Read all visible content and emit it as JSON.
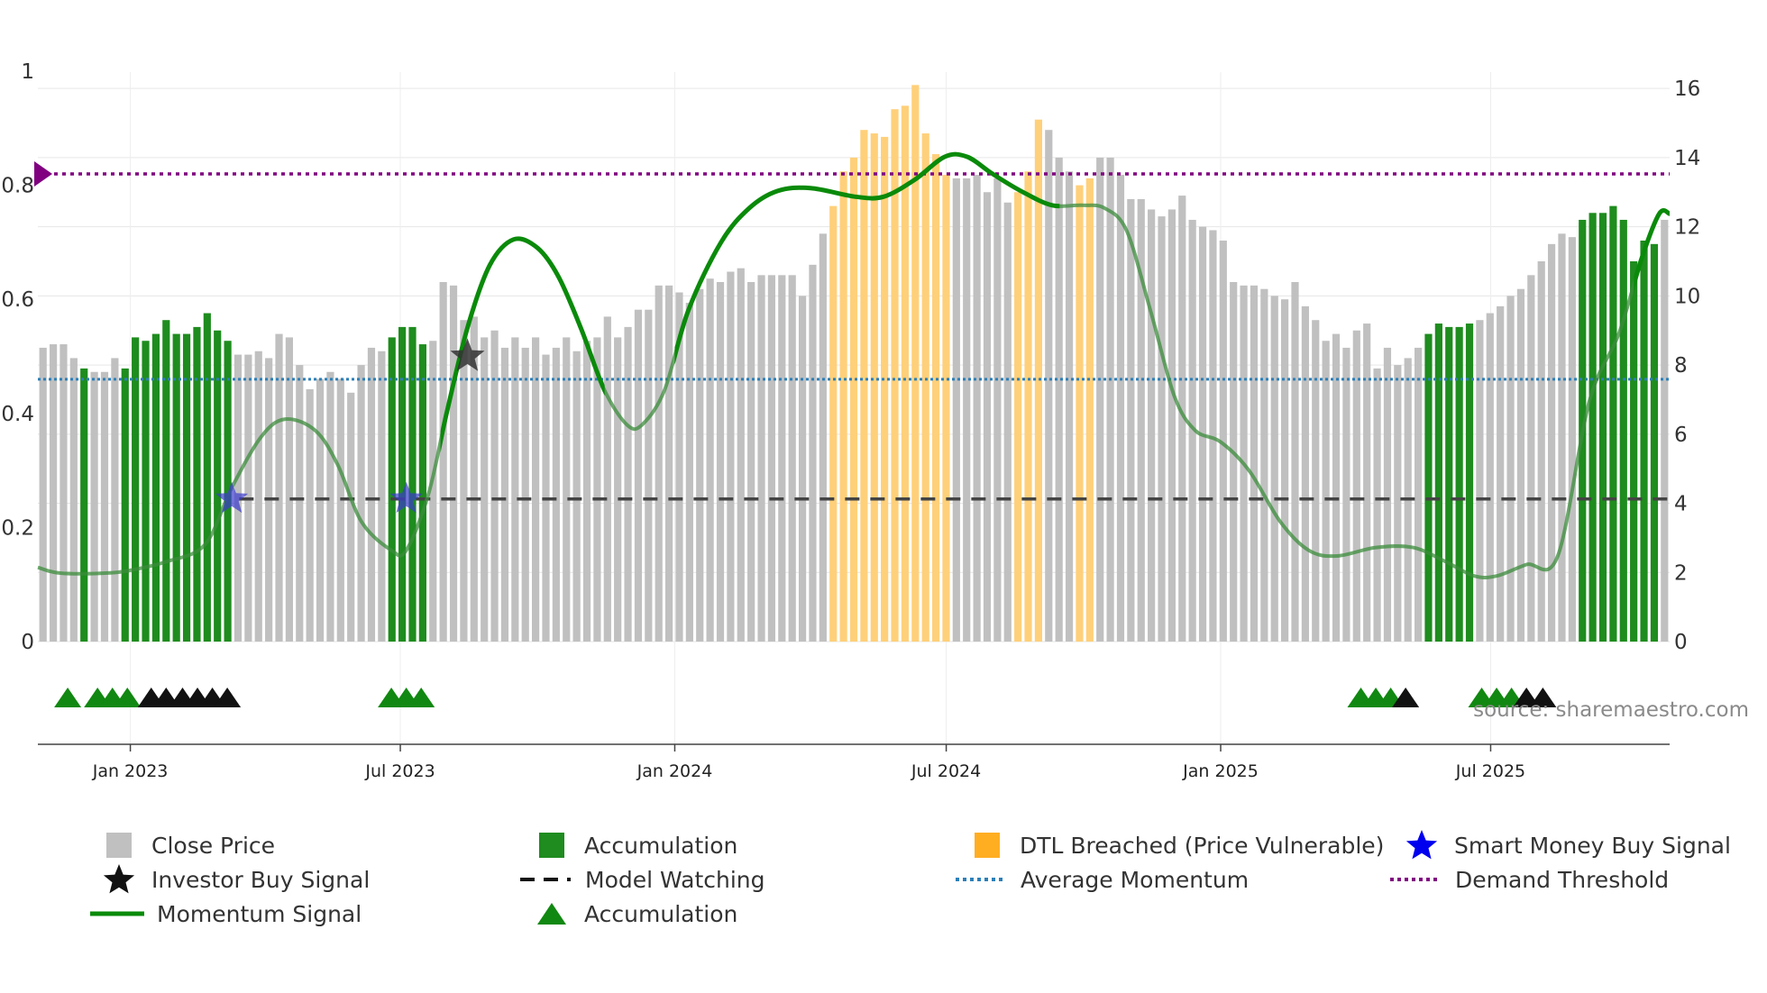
{
  "chart_data": {
    "type": "bar",
    "source": "source: sharemaestro.com",
    "y_left": {
      "ylim": [
        0,
        1
      ],
      "ticks": [
        0,
        0.2,
        0.4,
        0.6,
        0.8,
        1
      ],
      "tick_labels": [
        "0",
        "0.2",
        "0.4",
        "0.6",
        "0.8",
        "1"
      ]
    },
    "y_right": {
      "ylim": [
        0,
        16.5
      ],
      "ticks": [
        0,
        2,
        4,
        6,
        8,
        10,
        12,
        14,
        16
      ],
      "tick_labels": [
        "0",
        "2",
        "4",
        "6",
        "8",
        "10",
        "12",
        "14",
        "16"
      ]
    },
    "x": {
      "range": [
        "2022-10-31",
        "2025-10-29"
      ],
      "ticks": [
        "2023-01-01",
        "2023-07-01",
        "2024-01-01",
        "2024-07-01",
        "2025-01-01",
        "2025-07-01"
      ],
      "tick_labels": [
        "Jan 2023",
        "Jul 2023",
        "Jan 2024",
        "Jul 2024",
        "Jan 2025",
        "Jul 2025"
      ]
    },
    "series_prices": [
      8.5,
      8.6,
      8.6,
      8.2,
      7.9,
      7.8,
      7.8,
      8.2,
      7.9,
      8.8,
      8.7,
      8.9,
      9.3,
      8.9,
      8.9,
      9.1,
      9.5,
      9.0,
      8.7,
      8.3,
      8.3,
      8.4,
      8.2,
      8.9,
      8.8,
      8.0,
      7.3,
      7.6,
      7.8,
      7.6,
      7.2,
      8.0,
      8.5,
      8.4,
      8.8,
      9.1,
      9.1,
      8.6,
      8.7,
      10.4,
      10.3,
      9.3,
      9.4,
      8.8,
      9.0,
      8.5,
      8.8,
      8.5,
      8.8,
      8.3,
      8.5,
      8.8,
      8.4,
      8.7,
      8.8,
      9.4,
      8.8,
      9.1,
      9.6,
      9.6,
      10.3,
      10.3,
      10.1,
      9.8,
      10.2,
      10.5,
      10.4,
      10.7,
      10.8,
      10.4,
      10.6,
      10.6,
      10.6,
      10.6,
      10.0,
      10.9,
      11.8,
      12.6,
      13.6,
      14.0,
      14.8,
      14.7,
      14.6,
      15.4,
      15.5,
      16.1,
      14.7,
      14.1,
      13.5,
      13.4,
      13.4,
      13.5,
      13.0,
      13.4,
      12.7,
      13.0,
      13.6,
      15.1,
      14.8,
      14.0,
      13.6,
      13.2,
      13.4,
      14.0,
      14.0,
      13.5,
      12.8,
      12.8,
      12.5,
      12.3,
      12.5,
      12.9,
      12.2,
      12.0,
      11.9,
      11.6,
      10.4,
      10.3,
      10.3,
      10.2,
      10.0,
      9.9,
      10.4,
      9.7,
      9.3,
      8.7,
      8.9,
      8.5,
      9.0,
      9.2,
      7.9,
      8.5,
      8.0,
      8.2,
      8.5,
      8.9,
      9.2,
      9.1,
      9.1,
      9.2,
      9.3,
      9.5,
      9.7,
      10.0,
      10.2,
      10.6,
      11.0,
      11.5,
      11.8,
      11.7,
      12.2,
      12.4,
      12.4,
      12.6,
      12.2,
      11.0,
      11.6,
      11.5,
      12.2
    ],
    "accumulation_bar_indices": [
      4,
      8,
      9,
      10,
      11,
      12,
      13,
      14,
      15,
      16,
      17,
      18,
      34,
      35,
      36,
      37,
      135,
      136,
      137,
      138,
      139,
      150,
      151,
      152,
      153,
      154,
      155,
      156,
      157
    ],
    "dtl_breached_bar_indices": [
      77,
      78,
      79,
      80,
      81,
      82,
      83,
      84,
      85,
      86,
      87,
      88,
      95,
      96,
      97,
      101,
      102
    ],
    "momentum_signal": [
      [
        "2022-10-31",
        0.13
      ],
      [
        "2022-11-15",
        0.12
      ],
      [
        "2022-12-15",
        0.12
      ],
      [
        "2023-01-01",
        0.125
      ],
      [
        "2023-01-25",
        0.14
      ],
      [
        "2023-02-20",
        0.17
      ],
      [
        "2023-03-10",
        0.27
      ],
      [
        "2023-03-30",
        0.36
      ],
      [
        "2023-04-15",
        0.39
      ],
      [
        "2023-05-05",
        0.37
      ],
      [
        "2023-05-20",
        0.31
      ],
      [
        "2023-06-05",
        0.21
      ],
      [
        "2023-06-25",
        0.16
      ],
      [
        "2023-07-05",
        0.16
      ],
      [
        "2023-07-20",
        0.26
      ],
      [
        "2023-08-01",
        0.4
      ],
      [
        "2023-08-15",
        0.55
      ],
      [
        "2023-08-30",
        0.66
      ],
      [
        "2023-09-15",
        0.705
      ],
      [
        "2023-10-01",
        0.69
      ],
      [
        "2023-10-15",
        0.64
      ],
      [
        "2023-10-30",
        0.55
      ],
      [
        "2023-11-15",
        0.44
      ],
      [
        "2023-11-30",
        0.38
      ],
      [
        "2023-12-10",
        0.38
      ],
      [
        "2023-12-25",
        0.44
      ],
      [
        "2024-01-10",
        0.58
      ],
      [
        "2024-02-01",
        0.7
      ],
      [
        "2024-02-20",
        0.76
      ],
      [
        "2024-03-10",
        0.79
      ],
      [
        "2024-04-01",
        0.795
      ],
      [
        "2024-05-01",
        0.78
      ],
      [
        "2024-05-20",
        0.78
      ],
      [
        "2024-06-10",
        0.81
      ],
      [
        "2024-06-30",
        0.85
      ],
      [
        "2024-07-15",
        0.85
      ],
      [
        "2024-08-01",
        0.82
      ],
      [
        "2024-08-20",
        0.79
      ],
      [
        "2024-09-10",
        0.765
      ],
      [
        "2024-09-30",
        0.765
      ],
      [
        "2024-10-15",
        0.76
      ],
      [
        "2024-10-30",
        0.72
      ],
      [
        "2024-11-15",
        0.58
      ],
      [
        "2024-12-01",
        0.43
      ],
      [
        "2024-12-15",
        0.37
      ],
      [
        "2025-01-01",
        0.35
      ],
      [
        "2025-01-20",
        0.3
      ],
      [
        "2025-02-10",
        0.21
      ],
      [
        "2025-03-01",
        0.16
      ],
      [
        "2025-03-20",
        0.15
      ],
      [
        "2025-04-15",
        0.165
      ],
      [
        "2025-05-10",
        0.165
      ],
      [
        "2025-06-01",
        0.14
      ],
      [
        "2025-06-20",
        0.115
      ],
      [
        "2025-07-05",
        0.115
      ],
      [
        "2025-07-25",
        0.135
      ],
      [
        "2025-08-15",
        0.15
      ],
      [
        "2025-09-05",
        0.42
      ],
      [
        "2025-09-25",
        0.54
      ],
      [
        "2025-10-10",
        0.67
      ],
      [
        "2025-10-22",
        0.75
      ],
      [
        "2025-10-29",
        0.75
      ]
    ],
    "momentum_emphasis_ranges": [
      [
        "2023-07-28",
        "2023-11-15"
      ],
      [
        "2024-01-01",
        "2024-09-15"
      ],
      [
        "2025-10-05",
        "2025-10-29"
      ]
    ],
    "model_watching_level": 0.25,
    "model_watching_start": "2023-03-15",
    "average_momentum_level": 0.46,
    "demand_threshold_level": 0.82,
    "smart_money_buy_signals": [
      [
        "2023-03-10",
        0.25
      ],
      [
        "2023-07-05",
        0.25
      ]
    ],
    "investor_buy_signals": [
      [
        "2023-08-15",
        0.5
      ]
    ],
    "accumulation_markers_green": [
      "2022-11-20",
      "2022-12-10",
      "2022-12-20",
      "2022-12-30",
      "2023-06-25",
      "2023-07-05",
      "2023-07-15",
      "2025-04-05",
      "2025-04-15",
      "2025-04-25",
      "2025-06-25",
      "2025-07-05",
      "2025-07-15"
    ],
    "accumulation_markers_black": [
      "2023-01-15",
      "2023-01-25",
      "2023-02-05",
      "2023-02-15",
      "2023-02-25",
      "2023-03-07",
      "2025-05-05",
      "2025-07-25",
      "2025-08-05"
    ],
    "legend": [
      {
        "label": "Close Price",
        "symbol": "square",
        "color": "#c0c0c0"
      },
      {
        "label": "Accumulation",
        "symbol": "square",
        "color": "#1e8c1e"
      },
      {
        "label": "DTL Breached (Price Vulnerable)",
        "symbol": "square",
        "color": "#ffae22"
      },
      {
        "label": "Smart Money Buy Signal",
        "symbol": "star",
        "color": "#0000ee"
      },
      {
        "label": "Investor Buy Signal",
        "symbol": "star",
        "color": "#111111"
      },
      {
        "label": "Model Watching",
        "symbol": "dash",
        "color": "#111111"
      },
      {
        "label": "Average Momentum",
        "symbol": "dot",
        "color": "#2c7fb8"
      },
      {
        "label": "Demand Threshold",
        "symbol": "dot",
        "color": "#800080"
      },
      {
        "label": "Momentum Signal",
        "symbol": "line",
        "color": "#0a8a0a"
      },
      {
        "label": "Accumulation",
        "symbol": "triangle",
        "color": "#118811"
      }
    ]
  }
}
